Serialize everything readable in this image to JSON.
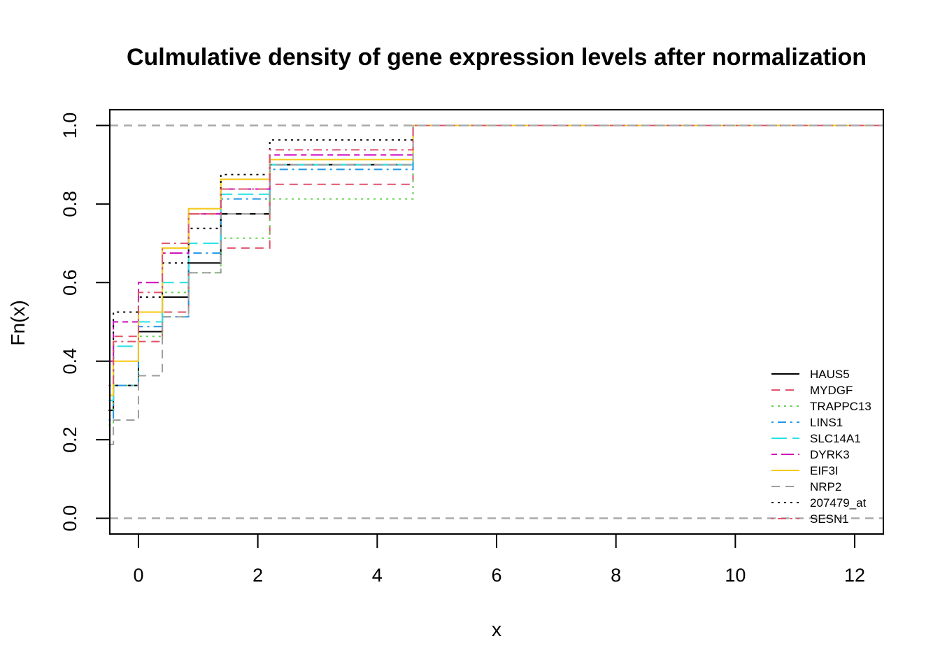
{
  "chart_data": {
    "type": "line",
    "subtype": "ecdf-step",
    "title": "Culmulative density of gene expression levels after normalization",
    "xlabel": "x",
    "ylabel": "Fn(x)",
    "xlim": [
      -0.48,
      12.48
    ],
    "ylim": [
      -0.04,
      1.04
    ],
    "x_ticks": [
      0,
      2,
      4,
      6,
      8,
      10,
      12
    ],
    "x_tick_labels": [
      "0",
      "2",
      "4",
      "6",
      "8",
      "10",
      "12"
    ],
    "y_ticks": [
      0.0,
      0.2,
      0.4,
      0.6,
      0.8,
      1.0
    ],
    "y_tick_labels": [
      "0.0",
      "0.2",
      "0.4",
      "0.6",
      "0.8",
      "1.0"
    ],
    "reference_lines": [
      0,
      1
    ],
    "legend_position": "bottom-right",
    "series": [
      {
        "name": "HAUS5",
        "color": "#000000",
        "dash": "solid",
        "steps": [
          [
            -0.5,
            0.275
          ],
          [
            -0.42,
            0.338
          ],
          [
            0.0,
            0.475
          ],
          [
            0.4,
            0.563
          ],
          [
            0.84,
            0.65
          ],
          [
            1.38,
            0.775
          ],
          [
            2.2,
            0.9
          ],
          [
            4.6,
            1.0
          ]
        ]
      },
      {
        "name": "MYDGF",
        "color": "#DF536B",
        "dash": "dashed",
        "steps": [
          [
            -0.5,
            0.3
          ],
          [
            -0.42,
            0.463
          ],
          [
            0.0,
            0.45
          ],
          [
            0.4,
            0.525
          ],
          [
            0.84,
            0.775
          ],
          [
            1.38,
            0.688
          ],
          [
            2.2,
            0.85
          ],
          [
            4.6,
            1.0
          ]
        ]
      },
      {
        "name": "TRAPPC13",
        "color": "#61D04F",
        "dash": "dotted",
        "steps": [
          [
            -0.5,
            0.238
          ],
          [
            -0.42,
            0.338
          ],
          [
            0.0,
            0.463
          ],
          [
            0.4,
            0.575
          ],
          [
            0.84,
            0.625
          ],
          [
            1.38,
            0.713
          ],
          [
            2.2,
            0.813
          ],
          [
            4.6,
            1.0
          ]
        ]
      },
      {
        "name": "LINS1",
        "color": "#2297E6",
        "dash": "dotdash",
        "steps": [
          [
            -0.5,
            0.25
          ],
          [
            -0.42,
            0.338
          ],
          [
            0.0,
            0.488
          ],
          [
            0.4,
            0.513
          ],
          [
            0.84,
            0.675
          ],
          [
            1.38,
            0.813
          ],
          [
            2.2,
            0.888
          ],
          [
            4.6,
            1.0
          ]
        ]
      },
      {
        "name": "SLC14A1",
        "color": "#28E2E5",
        "dash": "longdash",
        "steps": [
          [
            -0.5,
            0.3
          ],
          [
            -0.42,
            0.438
          ],
          [
            0.0,
            0.5
          ],
          [
            0.4,
            0.6
          ],
          [
            0.84,
            0.7
          ],
          [
            1.38,
            0.825
          ],
          [
            2.2,
            0.9
          ],
          [
            4.6,
            1.0
          ]
        ]
      },
      {
        "name": "DYRK3",
        "color": "#CD0BBC",
        "dash": "twodash",
        "steps": [
          [
            -0.5,
            0.4
          ],
          [
            -0.42,
            0.5
          ],
          [
            0.0,
            0.6
          ],
          [
            0.4,
            0.675
          ],
          [
            0.84,
            0.775
          ],
          [
            1.38,
            0.838
          ],
          [
            2.2,
            0.925
          ],
          [
            4.6,
            1.0
          ]
        ]
      },
      {
        "name": "EIF3I",
        "color": "#F5C710",
        "dash": "solid",
        "steps": [
          [
            -0.5,
            0.313
          ],
          [
            -0.42,
            0.4
          ],
          [
            0.0,
            0.525
          ],
          [
            0.4,
            0.688
          ],
          [
            0.84,
            0.788
          ],
          [
            1.38,
            0.863
          ],
          [
            2.2,
            0.913
          ],
          [
            4.6,
            1.0
          ]
        ]
      },
      {
        "name": "NRP2",
        "color": "#9E9E9E",
        "dash": "dashed",
        "steps": [
          [
            -0.5,
            0.188
          ],
          [
            -0.42,
            0.25
          ],
          [
            0.0,
            0.363
          ],
          [
            0.4,
            0.513
          ],
          [
            0.84,
            0.625
          ],
          [
            1.38,
            0.775
          ],
          [
            2.2,
            0.9
          ],
          [
            4.6,
            1.0
          ]
        ]
      },
      {
        "name": "207479_at",
        "color": "#000000",
        "dash": "dotted",
        "steps": [
          [
            -0.5,
            0.338
          ],
          [
            -0.42,
            0.525
          ],
          [
            0.0,
            0.563
          ],
          [
            0.4,
            0.65
          ],
          [
            0.84,
            0.738
          ],
          [
            1.38,
            0.875
          ],
          [
            2.2,
            0.963
          ],
          [
            4.6,
            1.0
          ]
        ]
      },
      {
        "name": "SESN1",
        "color": "#DF536B",
        "dash": "dotdash",
        "steps": [
          [
            -0.5,
            0.338
          ],
          [
            -0.42,
            0.45
          ],
          [
            0.0,
            0.575
          ],
          [
            0.4,
            0.7
          ],
          [
            0.84,
            0.775
          ],
          [
            1.38,
            0.838
          ],
          [
            2.2,
            0.938
          ],
          [
            4.6,
            1.0
          ]
        ]
      }
    ]
  }
}
